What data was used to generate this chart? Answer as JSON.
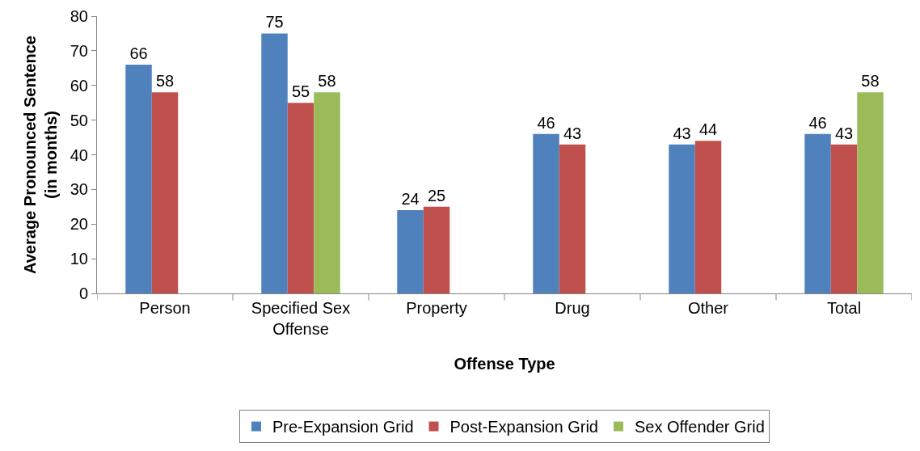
{
  "chart_data": {
    "type": "bar",
    "xlabel": "Offense Type",
    "ylabel": "Average Pronounced Sentence (in months)",
    "categories": [
      "Person",
      "Specified Sex Offense",
      "Property",
      "Drug",
      "Other",
      "Total"
    ],
    "series": [
      {
        "name": "Pre-Expansion Grid",
        "color": "#4f81bd",
        "values": [
          66,
          75,
          24,
          46,
          43,
          46
        ]
      },
      {
        "name": "Post-Expansion Grid",
        "color": "#c0504d",
        "values": [
          58,
          55,
          25,
          43,
          44,
          43
        ]
      },
      {
        "name": "Sex Offender Grid",
        "color": "#9bbb59",
        "values": [
          null,
          58,
          null,
          null,
          null,
          58
        ]
      }
    ],
    "ylim": [
      0,
      80
    ],
    "yticks": [
      0,
      10,
      20,
      30,
      40,
      50,
      60,
      70,
      80
    ],
    "data_labels": true,
    "legend": "bottom"
  }
}
